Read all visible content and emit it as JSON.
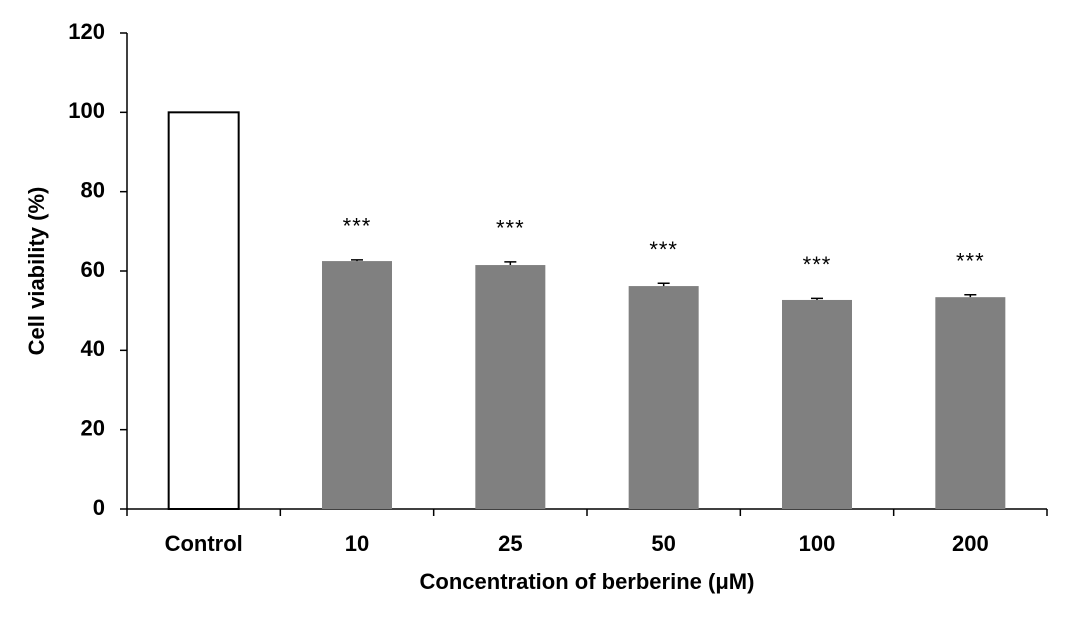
{
  "chart_data": {
    "type": "bar",
    "x_label": "Concentration of berberine (μM)",
    "y_label": "Cell viability (%)",
    "categories": [
      "Control",
      "10",
      "25",
      "50",
      "100",
      "200"
    ],
    "values": [
      100,
      62.5,
      61.5,
      56.2,
      52.7,
      53.4
    ],
    "errors": [
      null,
      0.3,
      0.8,
      0.7,
      0.4,
      0.6
    ],
    "annotations": [
      null,
      "***",
      "***",
      "***",
      "***",
      "***"
    ],
    "colors": [
      "#ffffff",
      "#808080",
      "#808080",
      "#808080",
      "#808080",
      "#808080"
    ],
    "ylim": [
      0,
      120
    ],
    "yticks": [
      0,
      20,
      40,
      60,
      80,
      100,
      120
    ],
    "grid": false
  }
}
